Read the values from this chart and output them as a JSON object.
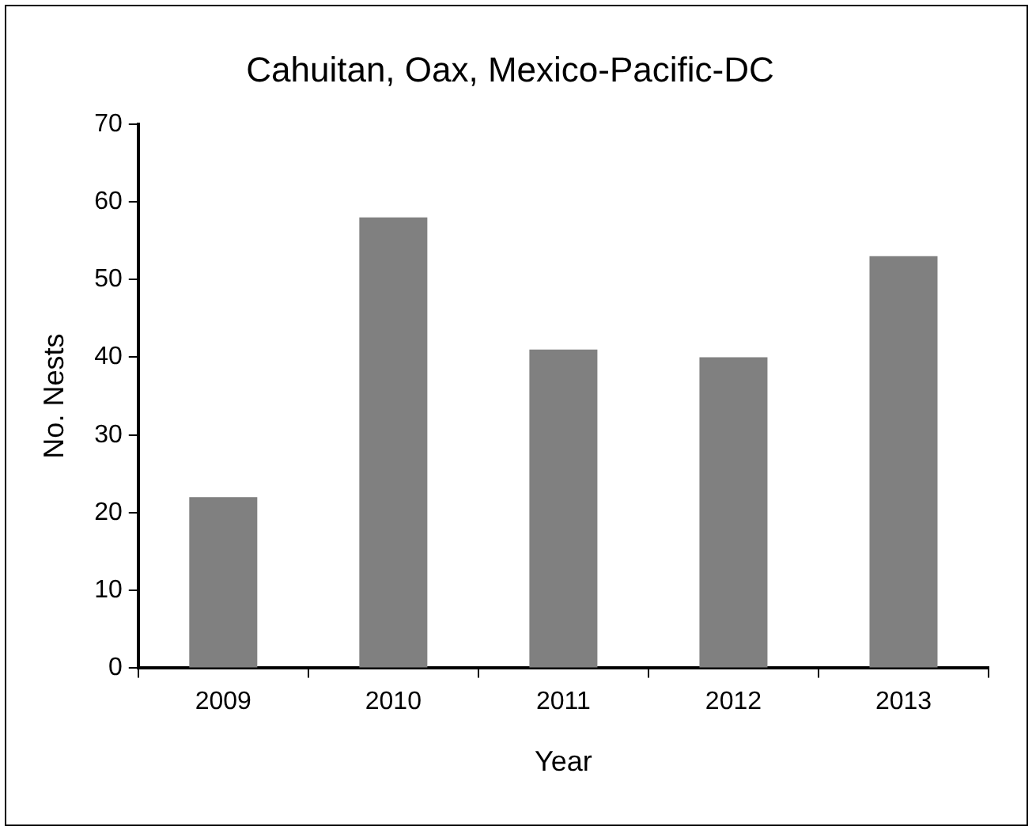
{
  "chart_data": {
    "type": "bar",
    "title": "Cahuitan, Oax, Mexico-Pacific-DC",
    "xlabel": "Year",
    "ylabel": "No. Nests",
    "categories": [
      "2009",
      "2010",
      "2011",
      "2012",
      "2013"
    ],
    "values": [
      22,
      58,
      41,
      40,
      53
    ],
    "color": "#808080",
    "ylim": [
      0,
      70
    ],
    "yticks": [
      0,
      10,
      20,
      30,
      40,
      50,
      60,
      70
    ],
    "grid": false,
    "legend": false
  }
}
